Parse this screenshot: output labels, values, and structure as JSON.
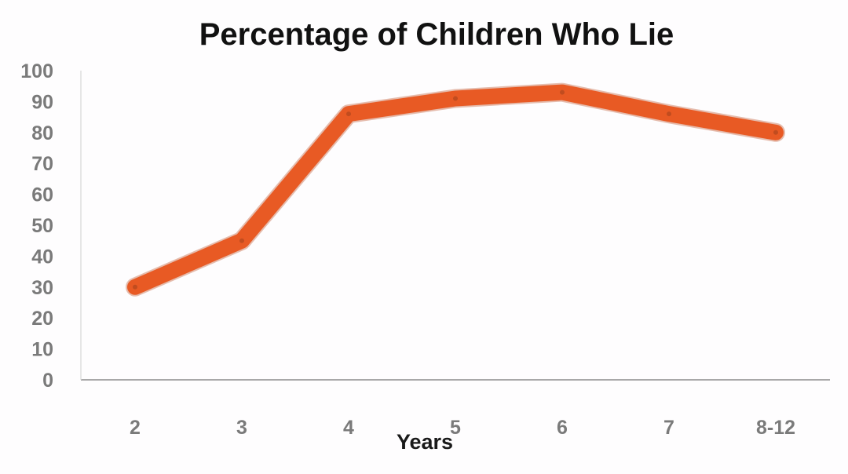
{
  "chart_data": {
    "type": "line",
    "title": "Percentage of Children Who Lie",
    "xlabel": "Years",
    "ylabel": "",
    "ylim": [
      0,
      100
    ],
    "yticks": [
      0,
      10,
      20,
      30,
      40,
      50,
      60,
      70,
      80,
      90,
      100
    ],
    "categories": [
      "2",
      "3",
      "4",
      "5",
      "6",
      "7",
      "8-12"
    ],
    "series": [
      {
        "values": [
          30,
          45,
          86,
          91,
          93,
          86,
          80
        ]
      }
    ],
    "grid": false,
    "legend": "none",
    "colors": {
      "line": "#e85a24",
      "axis": "#8c8c8c",
      "tick_text": "#7a7a7a",
      "title": "#111111"
    }
  }
}
